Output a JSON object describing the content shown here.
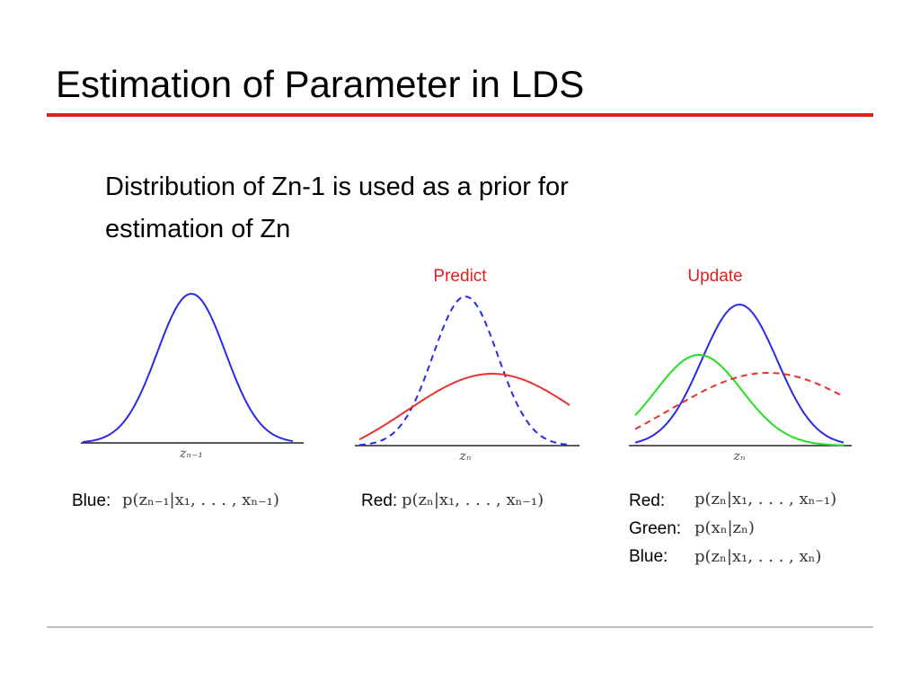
{
  "header": {
    "title": "Estimation of Parameter in LDS"
  },
  "body": {
    "lines": [
      "Distribution of Zn-1 is used as a prior for",
      "estimation of Zn"
    ]
  },
  "panels": [
    {
      "axis_label": "zₙ₋₁",
      "legend": [
        {
          "label": "Blue:",
          "formula": "p(zₙ₋₁|x₁, . . . , xₙ₋₁)"
        }
      ]
    },
    {
      "heading": "Predict",
      "axis_label": "zₙ",
      "legend": [
        {
          "label": "Red:",
          "formula": "p(zₙ|x₁, . . . , xₙ₋₁)"
        }
      ]
    },
    {
      "heading": "Update",
      "axis_label": "zₙ",
      "legend": [
        {
          "label": "Red:",
          "formula": "p(zₙ|x₁, . . . , xₙ₋₁)"
        },
        {
          "label": "Green:",
          "formula": "p(xₙ|zₙ)"
        },
        {
          "label": "Blue:",
          "formula": "p(zₙ|x₁, . . . , xₙ)"
        }
      ]
    }
  ]
}
